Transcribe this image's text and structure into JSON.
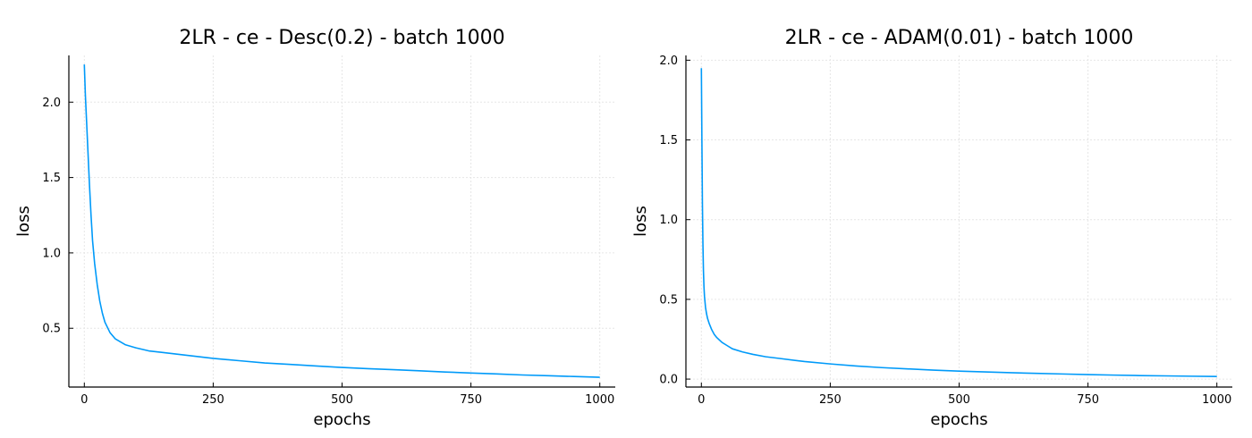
{
  "chart_data": [
    {
      "type": "line",
      "title": "2LR - ce - Desc(0.2) - batch 1000",
      "xlabel": "epochs",
      "ylabel": "loss",
      "xlim": [
        -30,
        1030
      ],
      "ylim": [
        0.11,
        2.31
      ],
      "xticks": [
        0,
        250,
        500,
        750,
        1000
      ],
      "xtick_labels": [
        "0",
        "250",
        "500",
        "750",
        "1000"
      ],
      "yticks": [
        0.5,
        1.0,
        1.5,
        2.0
      ],
      "ytick_labels": [
        "0.5",
        "1.0",
        "1.5",
        "2.0"
      ],
      "grid": true,
      "legend": "none",
      "series": [
        {
          "color": "#009af9",
          "x": [
            0,
            2,
            4,
            6,
            8,
            10,
            13,
            16,
            20,
            25,
            30,
            35,
            40,
            50,
            60,
            70,
            80,
            100,
            125,
            150,
            200,
            250,
            300,
            350,
            400,
            450,
            500,
            550,
            600,
            650,
            700,
            750,
            800,
            850,
            900,
            950,
            1000
          ],
          "y": [
            2.25,
            2.05,
            1.9,
            1.75,
            1.6,
            1.45,
            1.25,
            1.08,
            0.93,
            0.79,
            0.68,
            0.6,
            0.54,
            0.47,
            0.43,
            0.41,
            0.39,
            0.37,
            0.35,
            0.34,
            0.32,
            0.3,
            0.285,
            0.27,
            0.26,
            0.25,
            0.24,
            0.232,
            0.225,
            0.218,
            0.21,
            0.203,
            0.197,
            0.19,
            0.185,
            0.18,
            0.175
          ]
        }
      ]
    },
    {
      "type": "line",
      "title": "2LR - ce - ADAM(0.01) - batch 1000",
      "xlabel": "epochs",
      "ylabel": "loss",
      "xlim": [
        -30,
        1030
      ],
      "ylim": [
        -0.05,
        2.03
      ],
      "xticks": [
        0,
        250,
        500,
        750,
        1000
      ],
      "xtick_labels": [
        "0",
        "250",
        "500",
        "750",
        "1000"
      ],
      "yticks": [
        0.0,
        0.5,
        1.0,
        1.5,
        2.0
      ],
      "ytick_labels": [
        "0.0",
        "0.5",
        "1.0",
        "1.5",
        "2.0"
      ],
      "grid": true,
      "legend": "none",
      "series": [
        {
          "color": "#009af9",
          "x": [
            0,
            1,
            2,
            3,
            4,
            5,
            6,
            8,
            10,
            12,
            15,
            20,
            25,
            30,
            40,
            50,
            60,
            80,
            100,
            125,
            150,
            200,
            250,
            300,
            350,
            400,
            450,
            500,
            550,
            600,
            650,
            700,
            750,
            800,
            850,
            900,
            950,
            1000
          ],
          "y": [
            1.95,
            1.5,
            1.1,
            0.85,
            0.68,
            0.58,
            0.52,
            0.45,
            0.41,
            0.38,
            0.35,
            0.31,
            0.28,
            0.26,
            0.23,
            0.21,
            0.19,
            0.17,
            0.155,
            0.14,
            0.13,
            0.11,
            0.095,
            0.082,
            0.072,
            0.064,
            0.056,
            0.05,
            0.045,
            0.04,
            0.036,
            0.032,
            0.028,
            0.025,
            0.022,
            0.02,
            0.018,
            0.016
          ]
        }
      ]
    }
  ]
}
